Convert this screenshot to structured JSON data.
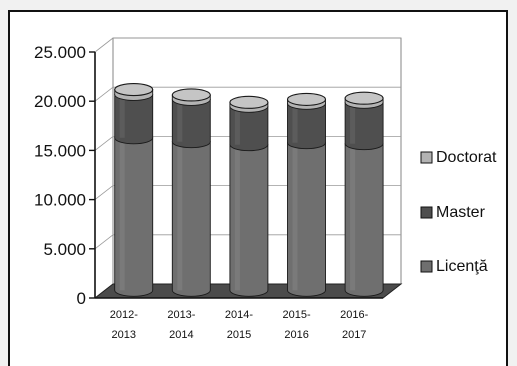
{
  "chart_data": {
    "type": "bar",
    "style": "3d-cylinder-stacked",
    "categories": [
      [
        "2012-",
        "2013"
      ],
      [
        "2013-",
        "2014"
      ],
      [
        "2014-",
        "2015"
      ],
      [
        "2015-",
        "2016"
      ],
      [
        "2016-",
        "2017"
      ]
    ],
    "series": [
      {
        "name": "Licenţă",
        "values": [
          15500,
          15100,
          14800,
          15000,
          14900
        ],
        "color": "#6f6f6f"
      },
      {
        "name": "Master",
        "values": [
          4400,
          4300,
          3900,
          4000,
          4200
        ],
        "color": "#4f4f4f"
      },
      {
        "name": "Doctorat",
        "values": [
          500,
          450,
          400,
          400,
          420
        ],
        "color": "#b3b3b3"
      }
    ],
    "yticks": [
      "25.000",
      "20.000",
      "15.000",
      "10.000",
      "5.000",
      "0"
    ],
    "ylim": [
      0,
      25000
    ],
    "legend_position": "right",
    "legend_order": [
      "Doctorat",
      "Master",
      "Licenţă"
    ],
    "grid": true
  }
}
